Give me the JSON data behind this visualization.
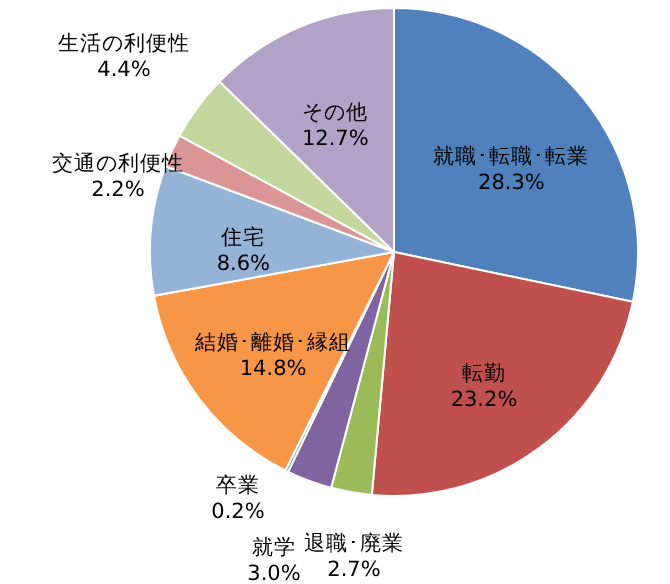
{
  "chart_data": {
    "type": "pie",
    "categories": [
      "就職･転職･転業",
      "転勤",
      "退職･廃業",
      "就学",
      "卒業",
      "結婚･離婚･縁組",
      "住宅",
      "交通の利便性",
      "生活の利便性",
      "その他"
    ],
    "values": [
      28.3,
      23.2,
      2.7,
      3.0,
      0.2,
      14.8,
      8.6,
      2.2,
      4.4,
      12.7
    ],
    "colors": [
      "#4f81bd",
      "#c0504d",
      "#9bbb59",
      "#8064a2",
      "#4bacc6",
      "#f79646",
      "#95b3d7",
      "#d99694",
      "#c3d69b",
      "#b3a2c7"
    ],
    "data_labels": true,
    "value_labels": [
      "28.3%",
      "23.2%",
      "2.7%",
      "3.0%",
      "0.2%",
      "14.8%",
      "8.6%",
      "2.2%",
      "4.4%",
      "12.7%"
    ]
  }
}
